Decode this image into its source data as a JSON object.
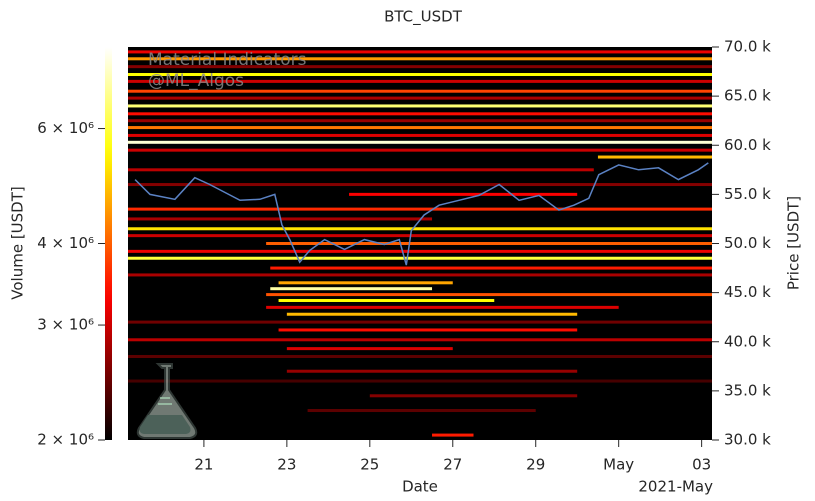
{
  "chart_data": {
    "type": "heatmap",
    "title": "BTC_USDT",
    "xlabel": "Date",
    "x_offset_label": "2021-May",
    "colorbar_label": "Volume [USDT]",
    "ylabel": "Price [USDT]",
    "y_axis_side": "right",
    "watermark": [
      "Material Indicators",
      "@ML_Algos"
    ],
    "colormap": "hot",
    "clim": [
      2000000,
      8000000
    ],
    "clog": true,
    "cticks": [
      {
        "value": 2000000,
        "label": "2 × 10⁶"
      },
      {
        "value": 3000000,
        "label": "3 × 10⁶"
      },
      {
        "value": 4000000,
        "label": "4 × 10⁶"
      },
      {
        "value": 6000000,
        "label": "6 × 10⁶"
      }
    ],
    "xlim": [
      19.17,
      33.25
    ],
    "xticks": [
      21,
      23,
      25,
      27,
      29,
      {
        "value": 31,
        "label": "May"
      },
      {
        "value": 33,
        "label": "03"
      }
    ],
    "ylim": [
      30000,
      70000
    ],
    "yticks": [
      {
        "value": 30000,
        "label": "30.0 k"
      },
      {
        "value": 35000,
        "label": "35.0 k"
      },
      {
        "value": 40000,
        "label": "40.0 k"
      },
      {
        "value": 45000,
        "label": "45.0 k"
      },
      {
        "value": 50000,
        "label": "50.0 k"
      },
      {
        "value": 55000,
        "label": "55.0 k"
      },
      {
        "value": 60000,
        "label": "60.0 k"
      },
      {
        "value": 65000,
        "label": "65.0 k"
      },
      {
        "value": 70000,
        "label": "70.0 k"
      }
    ],
    "heatmap": {
      "price": [
        69500,
        68800,
        68000,
        67200,
        66500,
        65500,
        64800,
        64000,
        63200,
        62500,
        61800,
        61000,
        60300,
        59500,
        58800,
        57500,
        56000,
        55000,
        53500,
        52500,
        51500,
        50800,
        50000,
        49200,
        48500,
        47500,
        46800,
        46000,
        45400,
        44800,
        44200,
        43500,
        42800,
        42000,
        41200,
        40200,
        39300,
        38500,
        37000,
        36000,
        34500,
        33000,
        30500
      ],
      "x_start": [
        19.17,
        19.17,
        19.17,
        19.17,
        19.17,
        19.17,
        19.17,
        19.17,
        19.17,
        19.17,
        19.17,
        19.17,
        19.17,
        19.17,
        30.5,
        19.17,
        19.17,
        24.5,
        19.17,
        19.17,
        19.17,
        19.17,
        22.5,
        19.17,
        19.17,
        22.6,
        19.17,
        22.8,
        22.6,
        22.5,
        22.8,
        22.5,
        23,
        19.17,
        22.8,
        19.17,
        23,
        19.17,
        23,
        19.17,
        25,
        23.5,
        26.5
      ],
      "x_end": [
        33.25,
        33.25,
        33.25,
        33.25,
        33.25,
        33.25,
        33.25,
        33.25,
        33.25,
        33.25,
        33.25,
        33.25,
        33.25,
        33.25,
        33.25,
        30.4,
        33.25,
        30,
        33.25,
        26.5,
        33.25,
        33.25,
        33.25,
        33.25,
        33.25,
        33.25,
        33.25,
        27,
        26.5,
        33.25,
        28,
        31,
        30,
        33.25,
        30,
        33.25,
        27,
        33.25,
        30,
        33.25,
        30,
        29,
        27.5
      ],
      "volume": [
        3200000,
        4500000,
        2600000,
        5500000,
        3000000,
        3800000,
        2800000,
        6500000,
        3400000,
        2700000,
        4200000,
        3100000,
        7500000,
        3000000,
        4800000,
        2900000,
        2600000,
        3300000,
        3600000,
        2800000,
        5200000,
        3000000,
        4000000,
        3200000,
        6000000,
        3500000,
        2800000,
        4600000,
        7000000,
        3900000,
        5500000,
        3100000,
        4800000,
        2500000,
        3400000,
        2900000,
        3100000,
        2400000,
        2700000,
        2300000,
        2600000,
        2400000,
        3500000
      ]
    },
    "line": {
      "color": "#5b82c4",
      "x": [
        19.34,
        19.7,
        20.3,
        20.78,
        21.14,
        21.87,
        22.35,
        22.71,
        22.88,
        23.07,
        23.31,
        23.55,
        23.91,
        24.39,
        24.87,
        25.35,
        25.71,
        25.88,
        26.0,
        26.31,
        26.67,
        27.15,
        27.63,
        28.12,
        28.6,
        29.08,
        29.56,
        29.92,
        30.28,
        30.52,
        31.0,
        31.48,
        31.96,
        32.44,
        32.92,
        33.16
      ],
      "values": [
        56500,
        55000,
        54500,
        56700,
        56000,
        54400,
        54500,
        55000,
        51900,
        50400,
        48100,
        49300,
        50400,
        49400,
        50400,
        49900,
        50400,
        47800,
        51300,
        52900,
        53900,
        54400,
        54900,
        56000,
        54400,
        54900,
        53400,
        53900,
        54600,
        57000,
        58000,
        57500,
        57700,
        56500,
        57500,
        58200
      ]
    }
  }
}
